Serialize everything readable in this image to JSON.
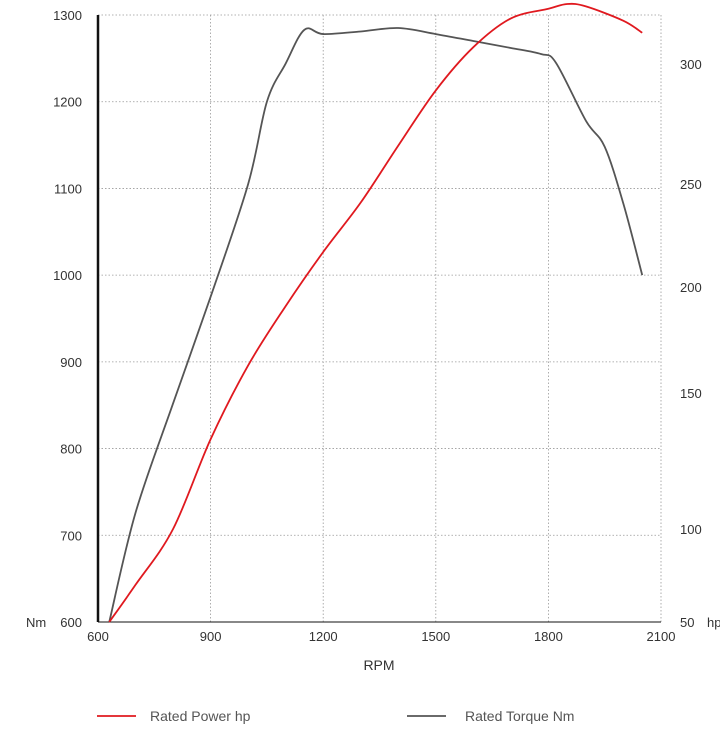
{
  "chart_data": {
    "type": "line",
    "xlabel": "RPM",
    "left_unit": "Nm",
    "right_unit": "hp",
    "x_ticks": [
      600,
      900,
      1200,
      1500,
      1800,
      2100
    ],
    "xlim": [
      600,
      2100
    ],
    "left_ticks": [
      600,
      700,
      800,
      900,
      1000,
      1100,
      1200,
      1300
    ],
    "ylim_left": [
      600,
      1300
    ],
    "right_ticks": [
      50,
      100,
      150,
      200,
      250,
      300
    ],
    "grid": true,
    "legend_position": "bottom",
    "series": [
      {
        "name": "Rated Power hp",
        "axis": "right",
        "color": "#e0191f",
        "x": [
          630,
          700,
          800,
          900,
          1000,
          1100,
          1200,
          1300,
          1400,
          1500,
          1600,
          1700,
          1800,
          1850,
          1900,
          2000,
          2050
        ],
        "y": [
          50,
          70,
          100,
          133,
          163,
          191,
          217,
          241,
          266,
          289,
          307,
          319,
          323,
          325,
          324,
          318,
          313
        ]
      },
      {
        "name": "Rated Torque Nm",
        "axis": "left",
        "color": "#555555",
        "x": [
          630,
          700,
          800,
          900,
          1000,
          1050,
          1100,
          1150,
          1200,
          1300,
          1400,
          1500,
          1600,
          1700,
          1780,
          1820,
          1900,
          1950,
          2000,
          2050
        ],
        "y": [
          600,
          726,
          852,
          975,
          1105,
          1200,
          1244,
          1283,
          1278,
          1281,
          1285,
          1278,
          1270,
          1262,
          1255,
          1245,
          1178,
          1148,
          1082,
          1000
        ]
      }
    ]
  }
}
